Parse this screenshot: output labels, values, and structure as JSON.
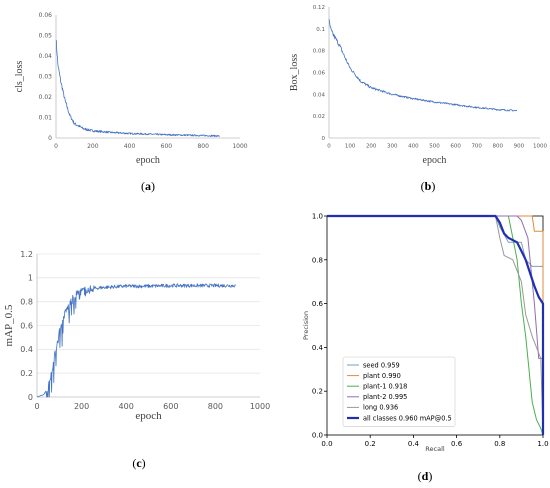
{
  "chart_data": [
    {
      "panel": "(a)",
      "type": "line",
      "xlabel": "epoch",
      "ylabel": "cls_loss",
      "xlim": [
        0,
        1000
      ],
      "ylim": [
        0,
        0.06
      ],
      "xticks": [
        "0",
        "200",
        "400",
        "600",
        "800",
        "1000"
      ],
      "yticks": [
        "0",
        "0.01",
        "0.02",
        "0.03",
        "0.04",
        "0.05",
        "0.06"
      ],
      "grid": false,
      "series": [
        {
          "color": "#4472c4",
          "x": [
            0,
            10,
            25,
            50,
            75,
            100,
            150,
            200,
            300,
            400,
            500,
            600,
            700,
            800,
            890
          ],
          "y": [
            0.049,
            0.036,
            0.028,
            0.018,
            0.011,
            0.007,
            0.0045,
            0.0035,
            0.0027,
            0.0022,
            0.0019,
            0.0016,
            0.0014,
            0.0012,
            0.001
          ]
        }
      ]
    },
    {
      "panel": "(b)",
      "type": "line",
      "xlabel": "epoch",
      "ylabel": "Box_loss",
      "xlim": [
        0,
        1000
      ],
      "ylim": [
        0,
        0.12
      ],
      "xticks": [
        "0",
        "100",
        "200",
        "300",
        "400",
        "500",
        "600",
        "700",
        "800",
        "900",
        "1000"
      ],
      "yticks": [
        "0",
        "0.02",
        "0.04",
        "0.06",
        "0.08",
        "0.1",
        "0.12"
      ],
      "grid": false,
      "series": [
        {
          "color": "#4472c4",
          "x": [
            0,
            10,
            25,
            50,
            75,
            100,
            150,
            200,
            300,
            400,
            500,
            600,
            700,
            800,
            890
          ],
          "y": [
            0.107,
            0.098,
            0.093,
            0.085,
            0.074,
            0.064,
            0.052,
            0.046,
            0.04,
            0.036,
            0.033,
            0.0305,
            0.028,
            0.026,
            0.025
          ]
        }
      ]
    },
    {
      "panel": "(c)",
      "type": "line",
      "xlabel": "epoch",
      "ylabel": "mAP_0.5",
      "xlim": [
        0,
        1000
      ],
      "ylim": [
        0,
        1.2
      ],
      "xticks": [
        "0",
        "200",
        "400",
        "600",
        "800",
        "1000"
      ],
      "yticks": [
        "0",
        "0.2",
        "0.4",
        "0.6",
        "0.8",
        "1",
        "1.2"
      ],
      "grid": true,
      "series": [
        {
          "color": "#4472c4",
          "x": [
            0,
            30,
            50,
            75,
            100,
            125,
            150,
            175,
            200,
            250,
            300,
            400,
            500,
            600,
            700,
            800,
            890
          ],
          "y": [
            0.0,
            0.02,
            0.08,
            0.3,
            0.55,
            0.7,
            0.8,
            0.86,
            0.89,
            0.91,
            0.92,
            0.93,
            0.93,
            0.935,
            0.935,
            0.935,
            0.935
          ]
        }
      ]
    },
    {
      "panel": "(d)",
      "type": "line",
      "xlabel": "Recall",
      "ylabel": "Precision",
      "xlim": [
        0,
        1
      ],
      "ylim": [
        0,
        1
      ],
      "xticks": [
        "0.0",
        "0.2",
        "0.4",
        "0.6",
        "0.8",
        "1.0"
      ],
      "yticks": [
        "0.0",
        "0.2",
        "0.4",
        "0.6",
        "0.8",
        "1.0"
      ],
      "grid": false,
      "legend_position": "bottom-left",
      "series": [
        {
          "name": "seed 0.959",
          "color": "#7f9fb5",
          "width": 1,
          "x": [
            0,
            0.78,
            0.8,
            0.84,
            0.9,
            0.92,
            0.95,
            1.0,
            1.0
          ],
          "y": [
            1,
            1,
            0.95,
            0.88,
            0.88,
            0.8,
            0.77,
            0.77,
            0
          ]
        },
        {
          "name": "plant 0.990",
          "color": "#e08a3a",
          "width": 1,
          "x": [
            0,
            0.95,
            0.96,
            1.0,
            1.0
          ],
          "y": [
            1,
            1,
            0.93,
            0.93,
            0
          ]
        },
        {
          "name": "plant-1 0.918",
          "color": "#4caf50",
          "width": 1,
          "x": [
            0,
            0.84,
            0.86,
            0.88,
            0.9,
            0.92,
            0.93,
            0.95,
            0.97,
            0.99,
            1.0
          ],
          "y": [
            1,
            1,
            0.9,
            0.8,
            0.6,
            0.45,
            0.35,
            0.15,
            0.07,
            0.03,
            0.0
          ]
        },
        {
          "name": "plant-2 0.995",
          "color": "#8f6fb5",
          "width": 1,
          "x": [
            0,
            0.88,
            0.9,
            0.93,
            0.96,
            0.98,
            1.0,
            1.0
          ],
          "y": [
            1,
            1,
            0.98,
            0.9,
            0.6,
            0.35,
            0.35,
            0
          ]
        },
        {
          "name": "long 0.936",
          "color": "#999999",
          "width": 1,
          "x": [
            0,
            0.78,
            0.8,
            0.82,
            0.86,
            0.9,
            0.92,
            0.95,
            0.97,
            0.99,
            1.0
          ],
          "y": [
            1,
            1,
            0.9,
            0.82,
            0.8,
            0.7,
            0.55,
            0.45,
            0.4,
            0.35,
            0.0
          ]
        },
        {
          "name": "all classes 0.960 mAP@0.5",
          "color": "#1f2fb0",
          "width": 2.2,
          "x": [
            0,
            0.78,
            0.8,
            0.82,
            0.84,
            0.88,
            0.9,
            0.92,
            0.94,
            0.96,
            0.98,
            1.0,
            1.0
          ],
          "y": [
            1,
            1,
            0.97,
            0.92,
            0.9,
            0.88,
            0.84,
            0.8,
            0.74,
            0.68,
            0.63,
            0.6,
            0
          ]
        }
      ]
    }
  ]
}
